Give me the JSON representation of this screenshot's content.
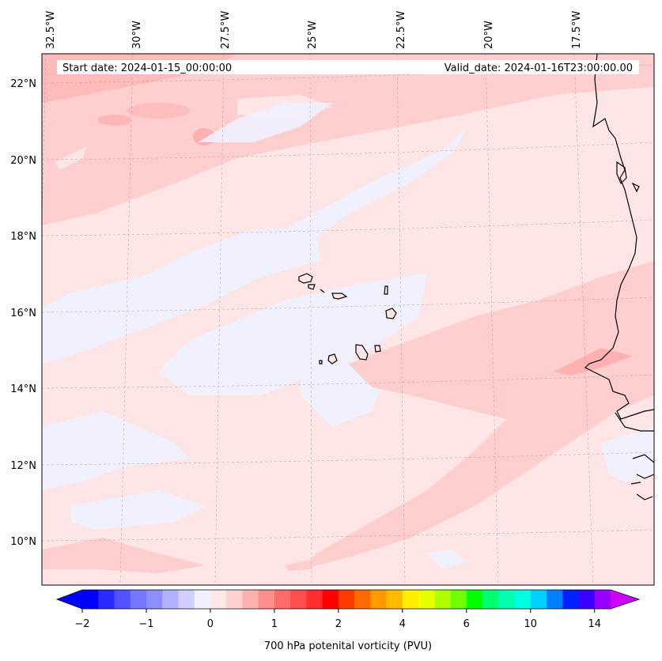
{
  "map": {
    "start_date": "Start date: 2024-01-15_00:00:00",
    "valid_date": "Valid_date: 2024-01-16T23:00:00.00",
    "longitude_labels": [
      "32.5°W",
      "30°W",
      "27.5°W",
      "25°W",
      "22.5°W",
      "20°W",
      "17.5°W"
    ],
    "latitude_labels": [
      "22°N",
      "20°N",
      "18°N",
      "16°N",
      "14°N",
      "12°N",
      "10°N"
    ]
  },
  "colorbar": {
    "title": "700 hPa potenital vorticity (PVU)",
    "tick_labels": [
      "−2",
      "−1",
      "0",
      "1",
      "2",
      "4",
      "6",
      "10",
      "14"
    ],
    "colors": [
      "#0000ff",
      "#2a2aff",
      "#5252ff",
      "#7676ff",
      "#8e8eff",
      "#b0b0ff",
      "#d0d0ff",
      "#f0f0ff",
      "#ffe8e8",
      "#ffd0d0",
      "#ffb0b0",
      "#ff8e8e",
      "#ff6a6a",
      "#ff4e4e",
      "#ff2e2e",
      "#ff0000",
      "#ff3a00",
      "#ff6a00",
      "#ff9a00",
      "#ffbb00",
      "#ffee00",
      "#e8ff00",
      "#b0ff00",
      "#70ff00",
      "#00ff00",
      "#00ff70",
      "#00ffb0",
      "#00ffe0",
      "#00d0ff",
      "#0080ff",
      "#0020ff",
      "#3a00ff",
      "#9a00ff"
    ],
    "extend_low_color": "#0000ff",
    "extend_high_color": "#cc00ff"
  },
  "palette": {
    "background_field": "#ffe6e6",
    "light_blue_field": "#f0f0ff",
    "pink_field": "#ffcfcf",
    "dark_pink_field": "#ffb0b0",
    "coastline": "#000000"
  }
}
